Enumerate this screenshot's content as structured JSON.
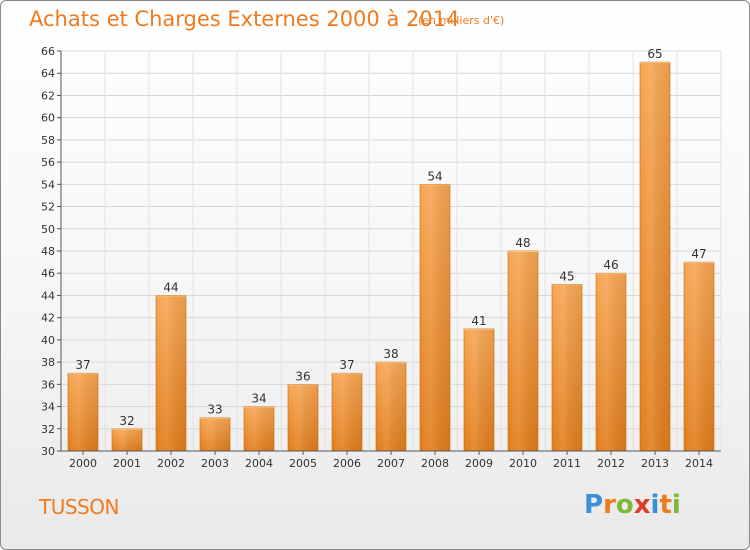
{
  "header": {
    "title": "Achats et Charges Externes 2000 à 2014",
    "subtitle": "(en milliers d'€)"
  },
  "footer": {
    "place": "TUSSON",
    "logo_letters": [
      "P",
      "r",
      "o",
      "x",
      "i",
      "t",
      "i"
    ],
    "logo_colors": [
      "#3a8fd8",
      "#f07a1e",
      "#7fb832",
      "#e03c2c",
      "#3a8fd8",
      "#f07a1e",
      "#7fb832"
    ]
  },
  "colors": {
    "bar_top": "#f7a552",
    "bar_bottom": "#e07c1a",
    "accent": "#f07a1e"
  },
  "chart_data": {
    "type": "bar",
    "title": "Achats et Charges Externes 2000 à 2014",
    "subtitle": "(en milliers d'€)",
    "categories": [
      "2000",
      "2001",
      "2002",
      "2003",
      "2004",
      "2005",
      "2006",
      "2007",
      "2008",
      "2009",
      "2010",
      "2011",
      "2012",
      "2013",
      "2014"
    ],
    "values": [
      37,
      32,
      44,
      33,
      34,
      36,
      37,
      38,
      54,
      41,
      48,
      45,
      46,
      65,
      47
    ],
    "ylim": [
      30,
      66
    ],
    "yticks": [
      30,
      32,
      34,
      36,
      38,
      40,
      42,
      44,
      46,
      48,
      50,
      52,
      54,
      56,
      58,
      60,
      62,
      64,
      66
    ],
    "grid": true,
    "data_labels": true
  }
}
